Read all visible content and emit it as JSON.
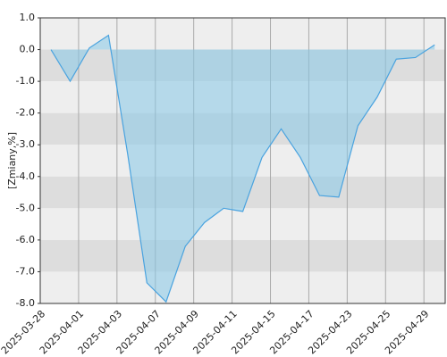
{
  "chart_data": {
    "type": "area",
    "y_label": "[Zmiany,%]",
    "categories": [
      "2025-03-28",
      null,
      "2025-04-01",
      null,
      "2025-04-03",
      null,
      "2025-04-07",
      null,
      "2025-04-09",
      null,
      "2025-04-11",
      null,
      "2025-04-15",
      null,
      "2025-04-17",
      null,
      "2025-04-23",
      null,
      "2025-04-25",
      null,
      "2025-04-29"
    ],
    "values": [
      0.0,
      -1.0,
      0.05,
      0.45,
      -3.3,
      -7.35,
      -7.95,
      -6.2,
      -5.45,
      -5.0,
      -5.1,
      -3.4,
      -2.5,
      -3.4,
      -4.6,
      -4.65,
      -2.4,
      -1.5,
      -0.3,
      -0.25,
      0.15
    ],
    "color": "#4aa3df",
    "ylim": [
      -8,
      1
    ],
    "yticks": [
      {
        "value": 1,
        "label": "1.0"
      },
      {
        "value": 0,
        "label": "0.0"
      },
      {
        "value": -1,
        "label": "-1.0"
      },
      {
        "value": -2,
        "label": "-2.0"
      },
      {
        "value": -3,
        "label": "-3.0"
      },
      {
        "value": -4,
        "label": "-4.0"
      },
      {
        "value": -5,
        "label": "-5.0"
      },
      {
        "value": -6,
        "label": "-6.0"
      },
      {
        "value": -7,
        "label": "-7.0"
      },
      {
        "value": -8,
        "label": "-8.0"
      }
    ],
    "grid": true
  }
}
